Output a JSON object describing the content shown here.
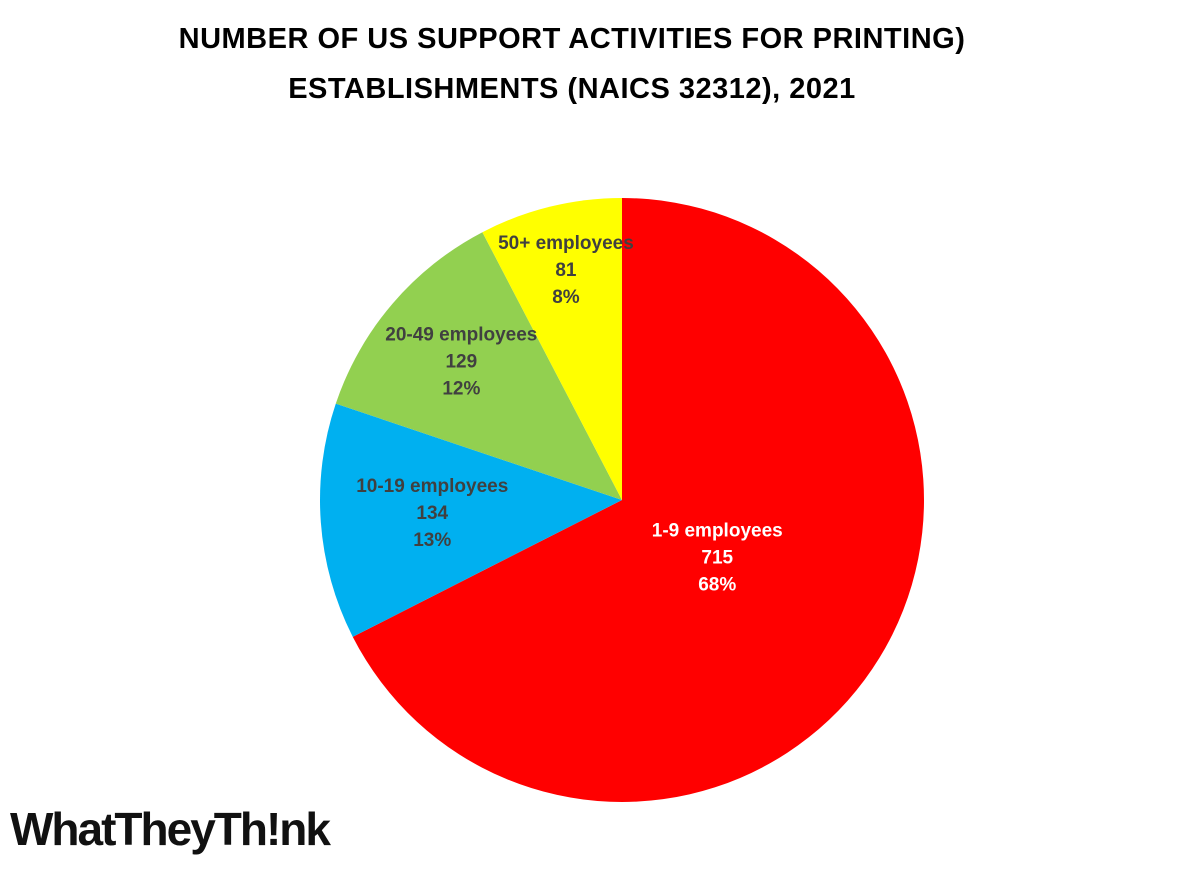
{
  "chart_data": {
    "type": "pie",
    "title_lines": [
      "NUMBER OF US SUPPORT ACTIVITIES FOR PRINTING)",
      "ESTABLISHMENTS (NAICS 32312), 2021"
    ],
    "categories": [
      "1-9 employees",
      "10-19 employees",
      "20-49 employees",
      "50+ employees"
    ],
    "values": [
      715,
      134,
      129,
      81
    ],
    "percent_labels": [
      "68%",
      "13%",
      "12%",
      "8%"
    ],
    "colors": [
      "#ff0000",
      "#00b0f0",
      "#92d050",
      "#ffff00"
    ],
    "label_colors": [
      "#ffffff",
      "#404040",
      "#404040",
      "#404040"
    ]
  },
  "logo": "WhatTheyTh!nk"
}
